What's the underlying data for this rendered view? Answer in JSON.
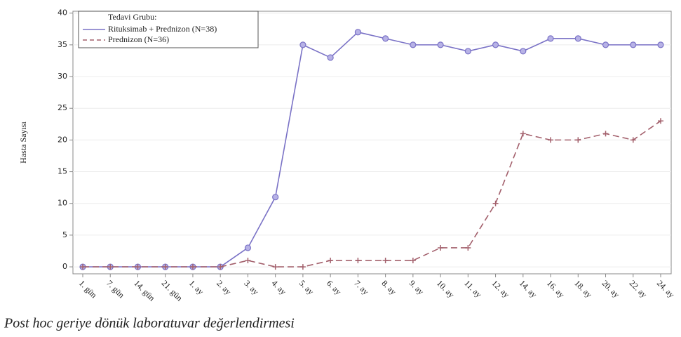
{
  "chart_data": {
    "type": "line",
    "y_label": "Hasta Sayısı",
    "caption": "Post hoc geriye dönük laboratuvar değerlendirmesi",
    "legend_title": "Tedavi Grubu:",
    "legend_position": "upper left",
    "grid": true,
    "categories": [
      "1. gün",
      "7. gün",
      "14. gün",
      "21. gün",
      "1. ay",
      "2. ay",
      "3. ay",
      "4. ay",
      "5. ay",
      "6. ay",
      "7. ay",
      "8. ay",
      "9. ay",
      "10. ay",
      "11. ay",
      "12. ay",
      "14. ay",
      "16. ay",
      "18. ay",
      "20. ay",
      "22. ay",
      "24. ay"
    ],
    "series": [
      {
        "name": "Rituksimab + Prednizon (N=38)",
        "color": "#7a72c6",
        "dash": false,
        "marker": "circle",
        "values": [
          0,
          0,
          0,
          0,
          0,
          0,
          3,
          11,
          35,
          33,
          37,
          36,
          35,
          35,
          34,
          35,
          34,
          36,
          36,
          35,
          35,
          35
        ]
      },
      {
        "name": "Prednizon (N=36)",
        "color": "#a3606c",
        "dash": true,
        "marker": "plus",
        "values": [
          0,
          0,
          0,
          0,
          0,
          0,
          1,
          0,
          0,
          1,
          1,
          1,
          1,
          3,
          3,
          10,
          21,
          20,
          20,
          21,
          20,
          23
        ]
      }
    ],
    "ylim": [
      -1.1,
      40.3
    ],
    "yticks": [
      0,
      5,
      10,
      15,
      20,
      25,
      30,
      35,
      40
    ]
  }
}
